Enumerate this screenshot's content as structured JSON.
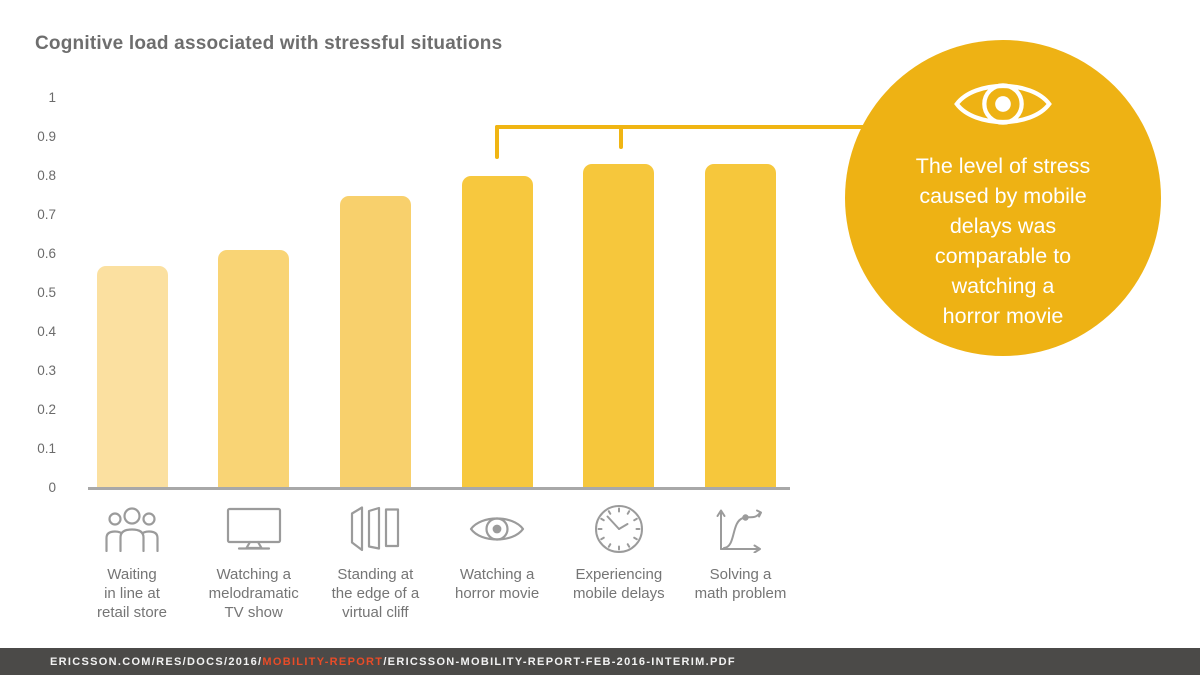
{
  "chart_data": {
    "type": "bar",
    "title": "Cognitive load associated with stressful situations",
    "categories": [
      "Waiting\nin line at\nretail store",
      "Watching a\nmelodramatic\nTV show",
      "Standing at\nthe edge of a\nvirtual cliff",
      "Watching a\nhorror movie",
      "Experiencing\nmobile delays",
      "Solving a\nmath problem"
    ],
    "values": [
      0.57,
      0.61,
      0.75,
      0.8,
      0.83,
      0.83
    ],
    "bar_colors": [
      "#FBE0A0",
      "#F9D475",
      "#F8D06C",
      "#F7C83E",
      "#F6C73C",
      "#F6C73C"
    ],
    "icons": [
      "people-group",
      "tv-screen",
      "virtual-cliff-panels",
      "eye",
      "clock",
      "math-graph"
    ],
    "xlabel": "",
    "ylabel": "",
    "ylim": [
      0,
      1
    ],
    "yticks": [
      1,
      0.9,
      0.8,
      0.7,
      0.6,
      0.5,
      0.4,
      0.3,
      0.2,
      0.1,
      0
    ],
    "yticklabels": [
      "1",
      "0.9",
      "0.8",
      "0.7",
      "0.6",
      "0.5",
      "0.4",
      "0.3",
      "0.2",
      "0.1",
      "0"
    ],
    "grid": false,
    "legend": false,
    "annotation_bracket_links": [
      "Watching a horror movie",
      "Experiencing mobile delays"
    ]
  },
  "callout": {
    "icon": "eye-icon",
    "text_block": "The level of stress\ncaused by mobile\ndelays was\ncomparable to\nwatching a\nhorror movie",
    "bg_color": "#EEB214",
    "text_color": "#FFFFFF"
  },
  "footer": {
    "url_prefix": "ERICSSON.COM/RES/DOCS/2016/",
    "url_highlight": "MOBILITY-REPORT",
    "url_suffix": "/ERICSSON-MOBILITY-REPORT-FEB-2016-INTERIM.PDF",
    "bg_color": "#4B4A48",
    "text_color": "#F2F2F2",
    "highlight_color": "#E84C28"
  },
  "colors": {
    "accent_gold": "#EEB214",
    "bracket": "#F0B513",
    "axis_line": "#A8A8A8",
    "title_text": "#6E6E6E",
    "tick_text": "#6B6B6B",
    "category_text": "#757575",
    "icon_gray": "#9B9B9B"
  }
}
